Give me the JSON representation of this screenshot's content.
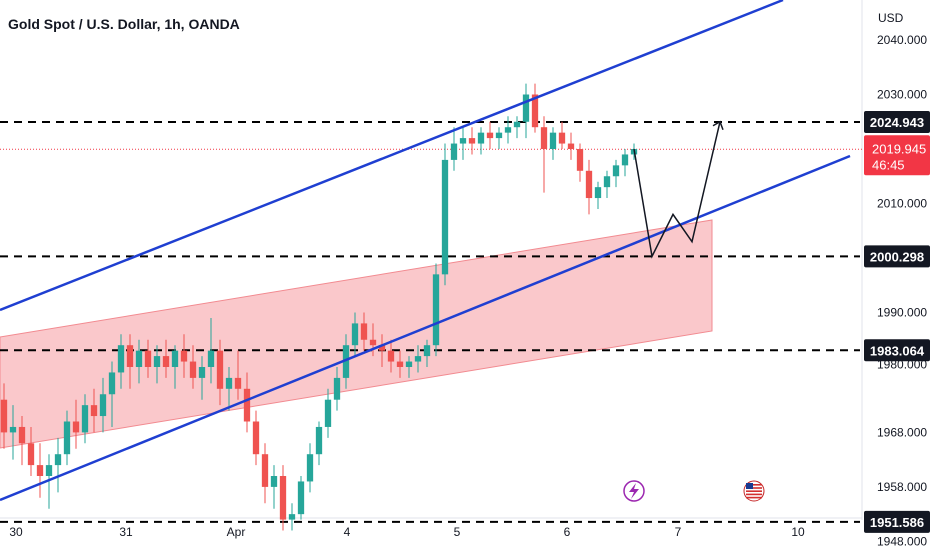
{
  "header": {
    "title": "Gold Spot / U.S. Dollar, 1h, OANDA"
  },
  "chart_data": {
    "type": "candlestick",
    "title": "Gold Spot / U.S. Dollar, 1h, OANDA",
    "currency_label": "USD",
    "x_ticks": [
      "30",
      "31",
      "Apr",
      "4",
      "5",
      "6",
      "7",
      "10"
    ],
    "y_ticks": [
      "2040.000",
      "2030.000",
      "2010.000",
      "1990.000",
      "1980.000",
      "1968.000",
      "1958.000",
      "1948.000"
    ],
    "colors": {
      "up": "#26a69a",
      "down": "#ef5350",
      "channel": "#1f3fd1",
      "zone_fill": "#f8b6ba",
      "zone_edge": "#f28a90",
      "level": "#000000",
      "current_price": "#f23645"
    },
    "horizontal_levels": [
      {
        "value": 2024.943,
        "label": "2024.943"
      },
      {
        "value": 2000.298,
        "label": "2000.298"
      },
      {
        "value": 1983.064,
        "label": "1983.064"
      },
      {
        "value": 1951.586,
        "label": "1951.586"
      }
    ],
    "current_price": {
      "value": 2019.945,
      "label": "2019.945",
      "countdown": "46:45"
    },
    "candles": [
      {
        "o": 1974,
        "h": 1977,
        "l": 1965,
        "c": 1968
      },
      {
        "o": 1968,
        "h": 1973,
        "l": 1963,
        "c": 1969
      },
      {
        "o": 1969,
        "h": 1971,
        "l": 1962,
        "c": 1966
      },
      {
        "o": 1966,
        "h": 1969,
        "l": 1960,
        "c": 1962
      },
      {
        "o": 1962,
        "h": 1966,
        "l": 1956,
        "c": 1960
      },
      {
        "o": 1960,
        "h": 1964,
        "l": 1954,
        "c": 1962
      },
      {
        "o": 1962,
        "h": 1967,
        "l": 1957,
        "c": 1964
      },
      {
        "o": 1964,
        "h": 1972,
        "l": 1962,
        "c": 1970
      },
      {
        "o": 1970,
        "h": 1974,
        "l": 1965,
        "c": 1968
      },
      {
        "o": 1968,
        "h": 1975,
        "l": 1966,
        "c": 1973
      },
      {
        "o": 1973,
        "h": 1976,
        "l": 1968,
        "c": 1971
      },
      {
        "o": 1971,
        "h": 1978,
        "l": 1968,
        "c": 1975
      },
      {
        "o": 1975,
        "h": 1981,
        "l": 1969,
        "c": 1979
      },
      {
        "o": 1979,
        "h": 1986,
        "l": 1976,
        "c": 1984
      },
      {
        "o": 1984,
        "h": 1986,
        "l": 1976,
        "c": 1980
      },
      {
        "o": 1980,
        "h": 1985,
        "l": 1977,
        "c": 1983
      },
      {
        "o": 1983,
        "h": 1985,
        "l": 1978,
        "c": 1980
      },
      {
        "o": 1980,
        "h": 1984,
        "l": 1977,
        "c": 1982
      },
      {
        "o": 1982,
        "h": 1985,
        "l": 1978,
        "c": 1980
      },
      {
        "o": 1980,
        "h": 1984,
        "l": 1976,
        "c": 1983
      },
      {
        "o": 1983,
        "h": 1986,
        "l": 1978,
        "c": 1981
      },
      {
        "o": 1981,
        "h": 1984,
        "l": 1976,
        "c": 1978
      },
      {
        "o": 1978,
        "h": 1982,
        "l": 1974,
        "c": 1980
      },
      {
        "o": 1980,
        "h": 1989,
        "l": 1977,
        "c": 1983
      },
      {
        "o": 1983,
        "h": 1985,
        "l": 1973,
        "c": 1976
      },
      {
        "o": 1976,
        "h": 1980,
        "l": 1972,
        "c": 1978
      },
      {
        "o": 1978,
        "h": 1983,
        "l": 1974,
        "c": 1976
      },
      {
        "o": 1976,
        "h": 1979,
        "l": 1968,
        "c": 1970
      },
      {
        "o": 1970,
        "h": 1972,
        "l": 1962,
        "c": 1964
      },
      {
        "o": 1964,
        "h": 1966,
        "l": 1955,
        "c": 1958
      },
      {
        "o": 1958,
        "h": 1962,
        "l": 1954,
        "c": 1960
      },
      {
        "o": 1960,
        "h": 1962,
        "l": 1950,
        "c": 1952
      },
      {
        "o": 1952,
        "h": 1955,
        "l": 1950,
        "c": 1953
      },
      {
        "o": 1953,
        "h": 1960,
        "l": 1952,
        "c": 1959
      },
      {
        "o": 1959,
        "h": 1966,
        "l": 1957,
        "c": 1964
      },
      {
        "o": 1964,
        "h": 1970,
        "l": 1962,
        "c": 1969
      },
      {
        "o": 1969,
        "h": 1976,
        "l": 1967,
        "c": 1974
      },
      {
        "o": 1974,
        "h": 1980,
        "l": 1972,
        "c": 1978
      },
      {
        "o": 1978,
        "h": 1986,
        "l": 1976,
        "c": 1984
      },
      {
        "o": 1984,
        "h": 1990,
        "l": 1982,
        "c": 1988
      },
      {
        "o": 1988,
        "h": 1990,
        "l": 1983,
        "c": 1985
      },
      {
        "o": 1985,
        "h": 1988,
        "l": 1982,
        "c": 1984
      },
      {
        "o": 1984,
        "h": 1986,
        "l": 1980,
        "c": 1983
      },
      {
        "o": 1983,
        "h": 1985,
        "l": 1979,
        "c": 1981
      },
      {
        "o": 1981,
        "h": 1983,
        "l": 1978,
        "c": 1980
      },
      {
        "o": 1980,
        "h": 1982,
        "l": 1978,
        "c": 1981
      },
      {
        "o": 1981,
        "h": 1984,
        "l": 1979,
        "c": 1982
      },
      {
        "o": 1982,
        "h": 1985,
        "l": 1980,
        "c": 1984
      },
      {
        "o": 1984,
        "h": 1999,
        "l": 1982,
        "c": 1997
      },
      {
        "o": 1997,
        "h": 2021,
        "l": 1995,
        "c": 2018
      },
      {
        "o": 2018,
        "h": 2024,
        "l": 2016,
        "c": 2021
      },
      {
        "o": 2021,
        "h": 2024,
        "l": 2018,
        "c": 2022
      },
      {
        "o": 2022,
        "h": 2024,
        "l": 2019,
        "c": 2021
      },
      {
        "o": 2021,
        "h": 2024,
        "l": 2019,
        "c": 2023
      },
      {
        "o": 2023,
        "h": 2025,
        "l": 2020,
        "c": 2022
      },
      {
        "o": 2022,
        "h": 2024,
        "l": 2020,
        "c": 2023
      },
      {
        "o": 2023,
        "h": 2026,
        "l": 2021,
        "c": 2024
      },
      {
        "o": 2024,
        "h": 2026,
        "l": 2022,
        "c": 2025
      },
      {
        "o": 2025,
        "h": 2032,
        "l": 2022,
        "c": 2030
      },
      {
        "o": 2030,
        "h": 2032,
        "l": 2023,
        "c": 2024
      },
      {
        "o": 2024,
        "h": 2026,
        "l": 2012,
        "c": 2020
      },
      {
        "o": 2020,
        "h": 2024,
        "l": 2018,
        "c": 2023
      },
      {
        "o": 2023,
        "h": 2025,
        "l": 2020,
        "c": 2021
      },
      {
        "o": 2021,
        "h": 2023,
        "l": 2018,
        "c": 2020
      },
      {
        "o": 2020,
        "h": 2021,
        "l": 2014,
        "c": 2016
      },
      {
        "o": 2016,
        "h": 2018,
        "l": 2008,
        "c": 2011
      },
      {
        "o": 2011,
        "h": 2014,
        "l": 2009,
        "c": 2013
      },
      {
        "o": 2013,
        "h": 2016,
        "l": 2011,
        "c": 2015
      },
      {
        "o": 2015,
        "h": 2018,
        "l": 2013,
        "c": 2017
      },
      {
        "o": 2017,
        "h": 2020,
        "l": 2015,
        "c": 2019
      },
      {
        "o": 2019,
        "h": 2021,
        "l": 2018,
        "c": 2020
      }
    ],
    "projection": [
      2020,
      2000.3,
      2008,
      2003,
      2025
    ]
  }
}
